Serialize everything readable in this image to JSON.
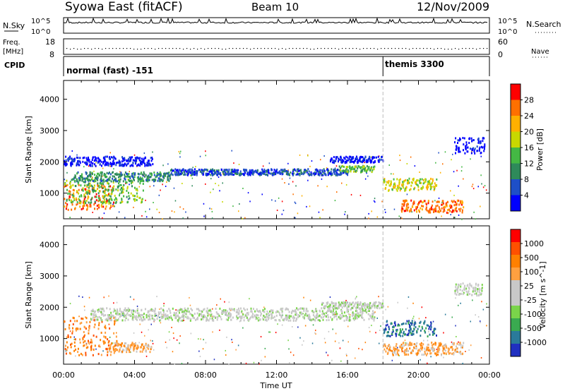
{
  "header": {
    "station": "Syowa East (fitACF)",
    "beam": "Beam 10",
    "date": "12/Nov/2009"
  },
  "left_labels": {
    "nsky": "N.Sky",
    "freq_line1": "Freq.",
    "freq_line2": "[MHz]",
    "cpid": "CPID"
  },
  "right_labels": {
    "nsearch": "N.Search",
    "nave": "Nave"
  },
  "noise_panel": {
    "tick_top": "10^5",
    "tick_bottom": "10^0",
    "right_tick_top": "10^5",
    "right_tick_bottom": "10^0"
  },
  "freq_panel": {
    "left_ticks": [
      "18",
      "8"
    ],
    "right_ticks": [
      "60",
      "0"
    ]
  },
  "cpid_panel": {
    "mode1": "normal (fast) -151",
    "mode2": "themis 3300",
    "switch_time_hours": 18.0
  },
  "colors": {
    "power_scale": [
      "#0000ff",
      "#1e4fc8",
      "#2e8a5a",
      "#44b844",
      "#c8d800",
      "#ffb000",
      "#ff7000",
      "#ff0000"
    ],
    "velocity_scale": [
      "#2030c0",
      "#2a7a9a",
      "#3aaa50",
      "#7ad44a",
      "#c8c8c8",
      "#c8c8c8",
      "#ffa040",
      "#ff8000",
      "#ff5000",
      "#ff0000"
    ]
  },
  "chart_data": [
    {
      "type": "heatmap",
      "title": "Power",
      "ylabel": "Slant Range [km]",
      "xlabel": "Time UT",
      "xlim_hours": [
        0,
        24
      ],
      "ylim": [
        180,
        4600
      ],
      "x_ticks": [
        "00:00",
        "04:00",
        "08:00",
        "12:00",
        "16:00",
        "20:00",
        "00:00"
      ],
      "y_ticks": [
        1000,
        2000,
        3000,
        4000
      ],
      "colorbar": {
        "label": "Power [dB]",
        "ticks": [
          4,
          8,
          12,
          16,
          20,
          24,
          28
        ]
      },
      "regions": [
        {
          "t0": 0.0,
          "t1": 2.8,
          "r0": 500,
          "r1": 1300,
          "level": 6
        },
        {
          "t0": 0.0,
          "t1": 4.5,
          "r0": 700,
          "r1": 1500,
          "level": 3
        },
        {
          "t0": 0.5,
          "t1": 6.0,
          "r0": 1400,
          "r1": 1700,
          "level": 2
        },
        {
          "t0": 0.0,
          "t1": 5.0,
          "r0": 1900,
          "r1": 2200,
          "level": 0
        },
        {
          "t0": 6.0,
          "t1": 16.0,
          "r0": 1600,
          "r1": 1800,
          "level": 1
        },
        {
          "t0": 15.5,
          "t1": 17.5,
          "r0": 1700,
          "r1": 1900,
          "level": 3
        },
        {
          "t0": 15.0,
          "t1": 18.0,
          "r0": 2000,
          "r1": 2200,
          "level": 0
        },
        {
          "t0": 18.0,
          "t1": 21.0,
          "r0": 1100,
          "r1": 1500,
          "level": 4
        },
        {
          "t0": 19.0,
          "t1": 22.5,
          "r0": 400,
          "r1": 800,
          "level": 6
        },
        {
          "t0": 22.0,
          "t1": 23.7,
          "r0": 2300,
          "r1": 2800,
          "level": 0
        }
      ]
    },
    {
      "type": "heatmap",
      "title": "Velocity",
      "ylabel": "Slant Range [km]",
      "xlabel": "Time UT",
      "xlim_hours": [
        0,
        24
      ],
      "ylim": [
        180,
        4600
      ],
      "x_ticks": [
        "00:00",
        "04:00",
        "08:00",
        "12:00",
        "16:00",
        "20:00",
        "00:00"
      ],
      "y_ticks": [
        1000,
        2000,
        3000,
        4000
      ],
      "colorbar": {
        "label": "Velocity [m s^-1]",
        "ticks": [
          1000,
          500,
          100,
          25,
          -25,
          -100,
          -500,
          -1000
        ]
      },
      "regions": [
        {
          "t0": 0.0,
          "t1": 3.0,
          "r0": 500,
          "r1": 1700,
          "level": 7
        },
        {
          "t0": 2.5,
          "t1": 5.0,
          "r0": 600,
          "r1": 900,
          "level": 6
        },
        {
          "t0": 1.5,
          "t1": 17.5,
          "r0": 1600,
          "r1": 2000,
          "level": 4
        },
        {
          "t0": 14.5,
          "t1": 18.0,
          "r0": 2000,
          "r1": 2200,
          "level": 4
        },
        {
          "t0": 18.0,
          "t1": 21.0,
          "r0": 1100,
          "r1": 1600,
          "level": 1
        },
        {
          "t0": 18.0,
          "t1": 22.5,
          "r0": 500,
          "r1": 900,
          "level": 6
        },
        {
          "t0": 22.0,
          "t1": 23.6,
          "r0": 2400,
          "r1": 2800,
          "level": 4
        }
      ]
    }
  ]
}
